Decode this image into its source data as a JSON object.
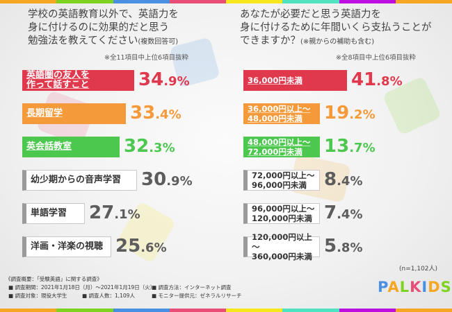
{
  "colors": {
    "highlight1": "#e0384d",
    "highlight2": "#f59a3a",
    "highlight3": "#4cc84f",
    "neutral": "#5c5c5c",
    "stripe": [
      "#f5a623",
      "#7ed321",
      "#4a90e2",
      "#e94e77",
      "#f8e71c",
      "#50e3c2",
      "#bd10e0",
      "#f5a623"
    ]
  },
  "left": {
    "question_lines": [
      "学校の英語教育以外で、英語力を",
      "身に付けるのに効果的だと思う",
      "勉強法を教えてください"
    ],
    "question_suffix": "(複数回答可)",
    "note": "※全11項目中上位6項目抜粋"
  },
  "right": {
    "question_lines": [
      "あなたが必要だと思う英語力を",
      "身に付けるために年間いくら支払うことが",
      "できますか？"
    ],
    "question_suffix": "(※親からの補助も含む)",
    "note": "※全8項目中上位6項目抜粋"
  },
  "chart_data": [
    {
      "type": "bar",
      "title": "学校の英語教育以外で、英語力を身に付けるのに効果的だと思う勉強法を教えてください(複数回答可)",
      "categories": [
        "英語圏の友人を作って話すこと",
        "長期留学",
        "英会話教室",
        "幼少期からの音声学習",
        "単語学習",
        "洋画・洋楽の視聴"
      ],
      "category_lines": [
        [
          "英語圏の友人を",
          "作って話すこと"
        ],
        [
          "長期留学"
        ],
        [
          "英会話教室"
        ],
        [
          "幼少期からの音声学習"
        ],
        [
          "単語学習"
        ],
        [
          "洋画・洋楽の視聴"
        ]
      ],
      "values": [
        34.9,
        33.4,
        32.3,
        30.9,
        27.1,
        25.6
      ],
      "value_labels": [
        {
          "int": "34",
          "dec": ".9",
          "unit": "%"
        },
        {
          "int": "33",
          "dec": ".4",
          "unit": "%"
        },
        {
          "int": "32",
          "dec": ".3",
          "unit": "%"
        },
        {
          "int": "30",
          "dec": ".9",
          "unit": "%"
        },
        {
          "int": "27",
          "dec": ".1",
          "unit": "%"
        },
        {
          "int": "25",
          "dec": ".6",
          "unit": "%"
        }
      ],
      "unit": "%"
    },
    {
      "type": "bar",
      "title": "あなたが必要だと思う英語力を身に付けるために年間いくら支払うことができますか？(※親からの補助も含む)",
      "categories": [
        "36,000円未満",
        "36,000円以上～48,000円未満",
        "48,000円以上～72,000円未満",
        "72,000円以上～96,000円未満",
        "96,000円以上～120,000円未満",
        "120,000円以上～360,000円未満"
      ],
      "category_lines": [
        [
          "36,000円未満"
        ],
        [
          "36,000円以上～",
          "48,000円未満"
        ],
        [
          "48,000円以上～",
          "72,000円未満"
        ],
        [
          "72,000円以上～",
          "96,000円未満"
        ],
        [
          "96,000円以上～",
          "120,000円未満"
        ],
        [
          "120,000円以上～",
          "360,000円未満"
        ]
      ],
      "values": [
        41.8,
        19.2,
        13.7,
        8.4,
        7.4,
        5.8
      ],
      "value_labels": [
        {
          "int": "41",
          "dec": ".8",
          "unit": "%"
        },
        {
          "int": "19",
          "dec": ".2",
          "unit": "%"
        },
        {
          "int": "13",
          "dec": ".7",
          "unit": "%"
        },
        {
          "int": "8",
          "dec": ".4",
          "unit": "%"
        },
        {
          "int": "7",
          "dec": ".4",
          "unit": "%"
        },
        {
          "int": "5",
          "dec": ".8",
          "unit": "%"
        }
      ],
      "unit": "%"
    }
  ],
  "sample_size": "(n=1,102人)",
  "survey": {
    "title": "《調査概要：「受験英語」に関する調査》",
    "period": "■ 調査期間：2021年1月18日（月）～2021年1月19日（火）",
    "method": "■ 調査方法：インターネット調査",
    "target": "■ 調査対象：現役大学生",
    "count": "■ 調査人数：1,109人",
    "provider": "■ モニター提供元：ゼネラルリサーチ"
  },
  "logo": {
    "text": "PALKIDS",
    "colors": [
      "#4a90e2",
      "#f5a623",
      "#7ed321",
      "#e94e77",
      "#4a90e2",
      "#f5a623",
      "#7ed321"
    ]
  }
}
